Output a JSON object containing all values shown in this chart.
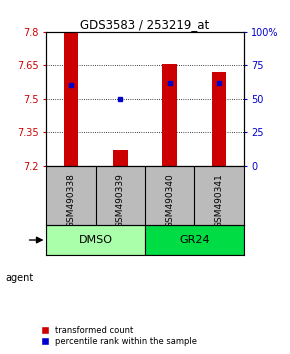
{
  "title": "GDS3583 / 253219_at",
  "samples": [
    "GSM490338",
    "GSM490339",
    "GSM490340",
    "GSM490341"
  ],
  "ymin": 7.2,
  "ymax": 7.8,
  "red_values": [
    7.795,
    7.27,
    7.655,
    7.62
  ],
  "blue_percentiles": [
    60,
    50,
    62,
    62
  ],
  "yticks_left": [
    7.2,
    7.35,
    7.5,
    7.65,
    7.8
  ],
  "yticks_right": [
    0,
    25,
    50,
    75,
    100
  ],
  "groups": [
    {
      "label": "DMSO",
      "indices": [
        0,
        1
      ],
      "color": "#AAFFAA"
    },
    {
      "label": "GR24",
      "indices": [
        2,
        3
      ],
      "color": "#00DD44"
    }
  ],
  "bar_color": "#CC0000",
  "dot_color": "#0000CC",
  "bar_width": 0.3,
  "background_plot": "#FFFFFF",
  "background_sample": "#BBBBBB",
  "legend_red_label": "transformed count",
  "legend_blue_label": "percentile rank within the sample",
  "agent_label": "agent"
}
